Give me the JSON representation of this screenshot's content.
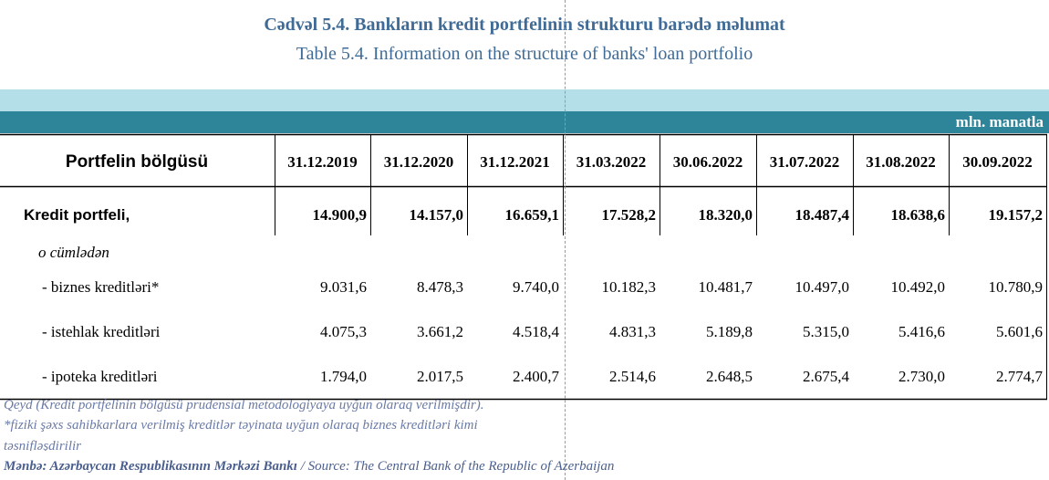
{
  "header": {
    "title_az": "Cədvəl 5.4. Bankların kredit portfelinin strukturu barədə məlumat",
    "title_en": "Table 5.4. Information on the structure of banks' loan portfolio"
  },
  "unit": "mln. manatla",
  "table": {
    "columns": [
      "Portfelin bölgüsü",
      "31.12.2019",
      "31.12.2020",
      "31.12.2021",
      "31.03.2022",
      "30.06.2022",
      "31.07.2022",
      "31.08.2022",
      "30.09.2022"
    ],
    "rows": [
      [
        "Kredit portfeli,",
        "14.900,9",
        "14.157,0",
        "16.659,1",
        "17.528,2",
        "18.320,0",
        "18.487,4",
        "18.638,6",
        "19.157,2"
      ],
      [
        "o cümlədən"
      ],
      [
        "- biznes kreditləri*",
        "9.031,6",
        "8.478,3",
        "9.740,0",
        "10.182,3",
        "10.481,7",
        "10.497,0",
        "10.492,0",
        "10.780,9"
      ],
      [
        "- istehlak kreditləri",
        "4.075,3",
        "3.661,2",
        "4.518,4",
        "4.831,3",
        "5.189,8",
        "5.315,0",
        "5.416,6",
        "5.601,6"
      ],
      [
        "- ipoteka kreditləri",
        "1.794,0",
        "2.017,5",
        "2.400,7",
        "2.514,6",
        "2.648,5",
        "2.675,4",
        "2.730,0",
        "2.774,7"
      ]
    ]
  },
  "notes": [
    "Qeyd (Kredit portfelinin bölgüsü prudensial metodologiyaya uyğun olaraq verilmişdir).",
    "*fiziki şəxs sahibkarlara verilmiş kreditlər təyinata uyğun olaraq biznes kreditləri kimi",
    "təsnifləşdirilir"
  ],
  "source": {
    "az": "Mənbə: Azərbaycan Respublikasının Mərkəzi Bankı",
    "en": " / Source: The Central Bank of the Republic of Azerbaijan"
  }
}
